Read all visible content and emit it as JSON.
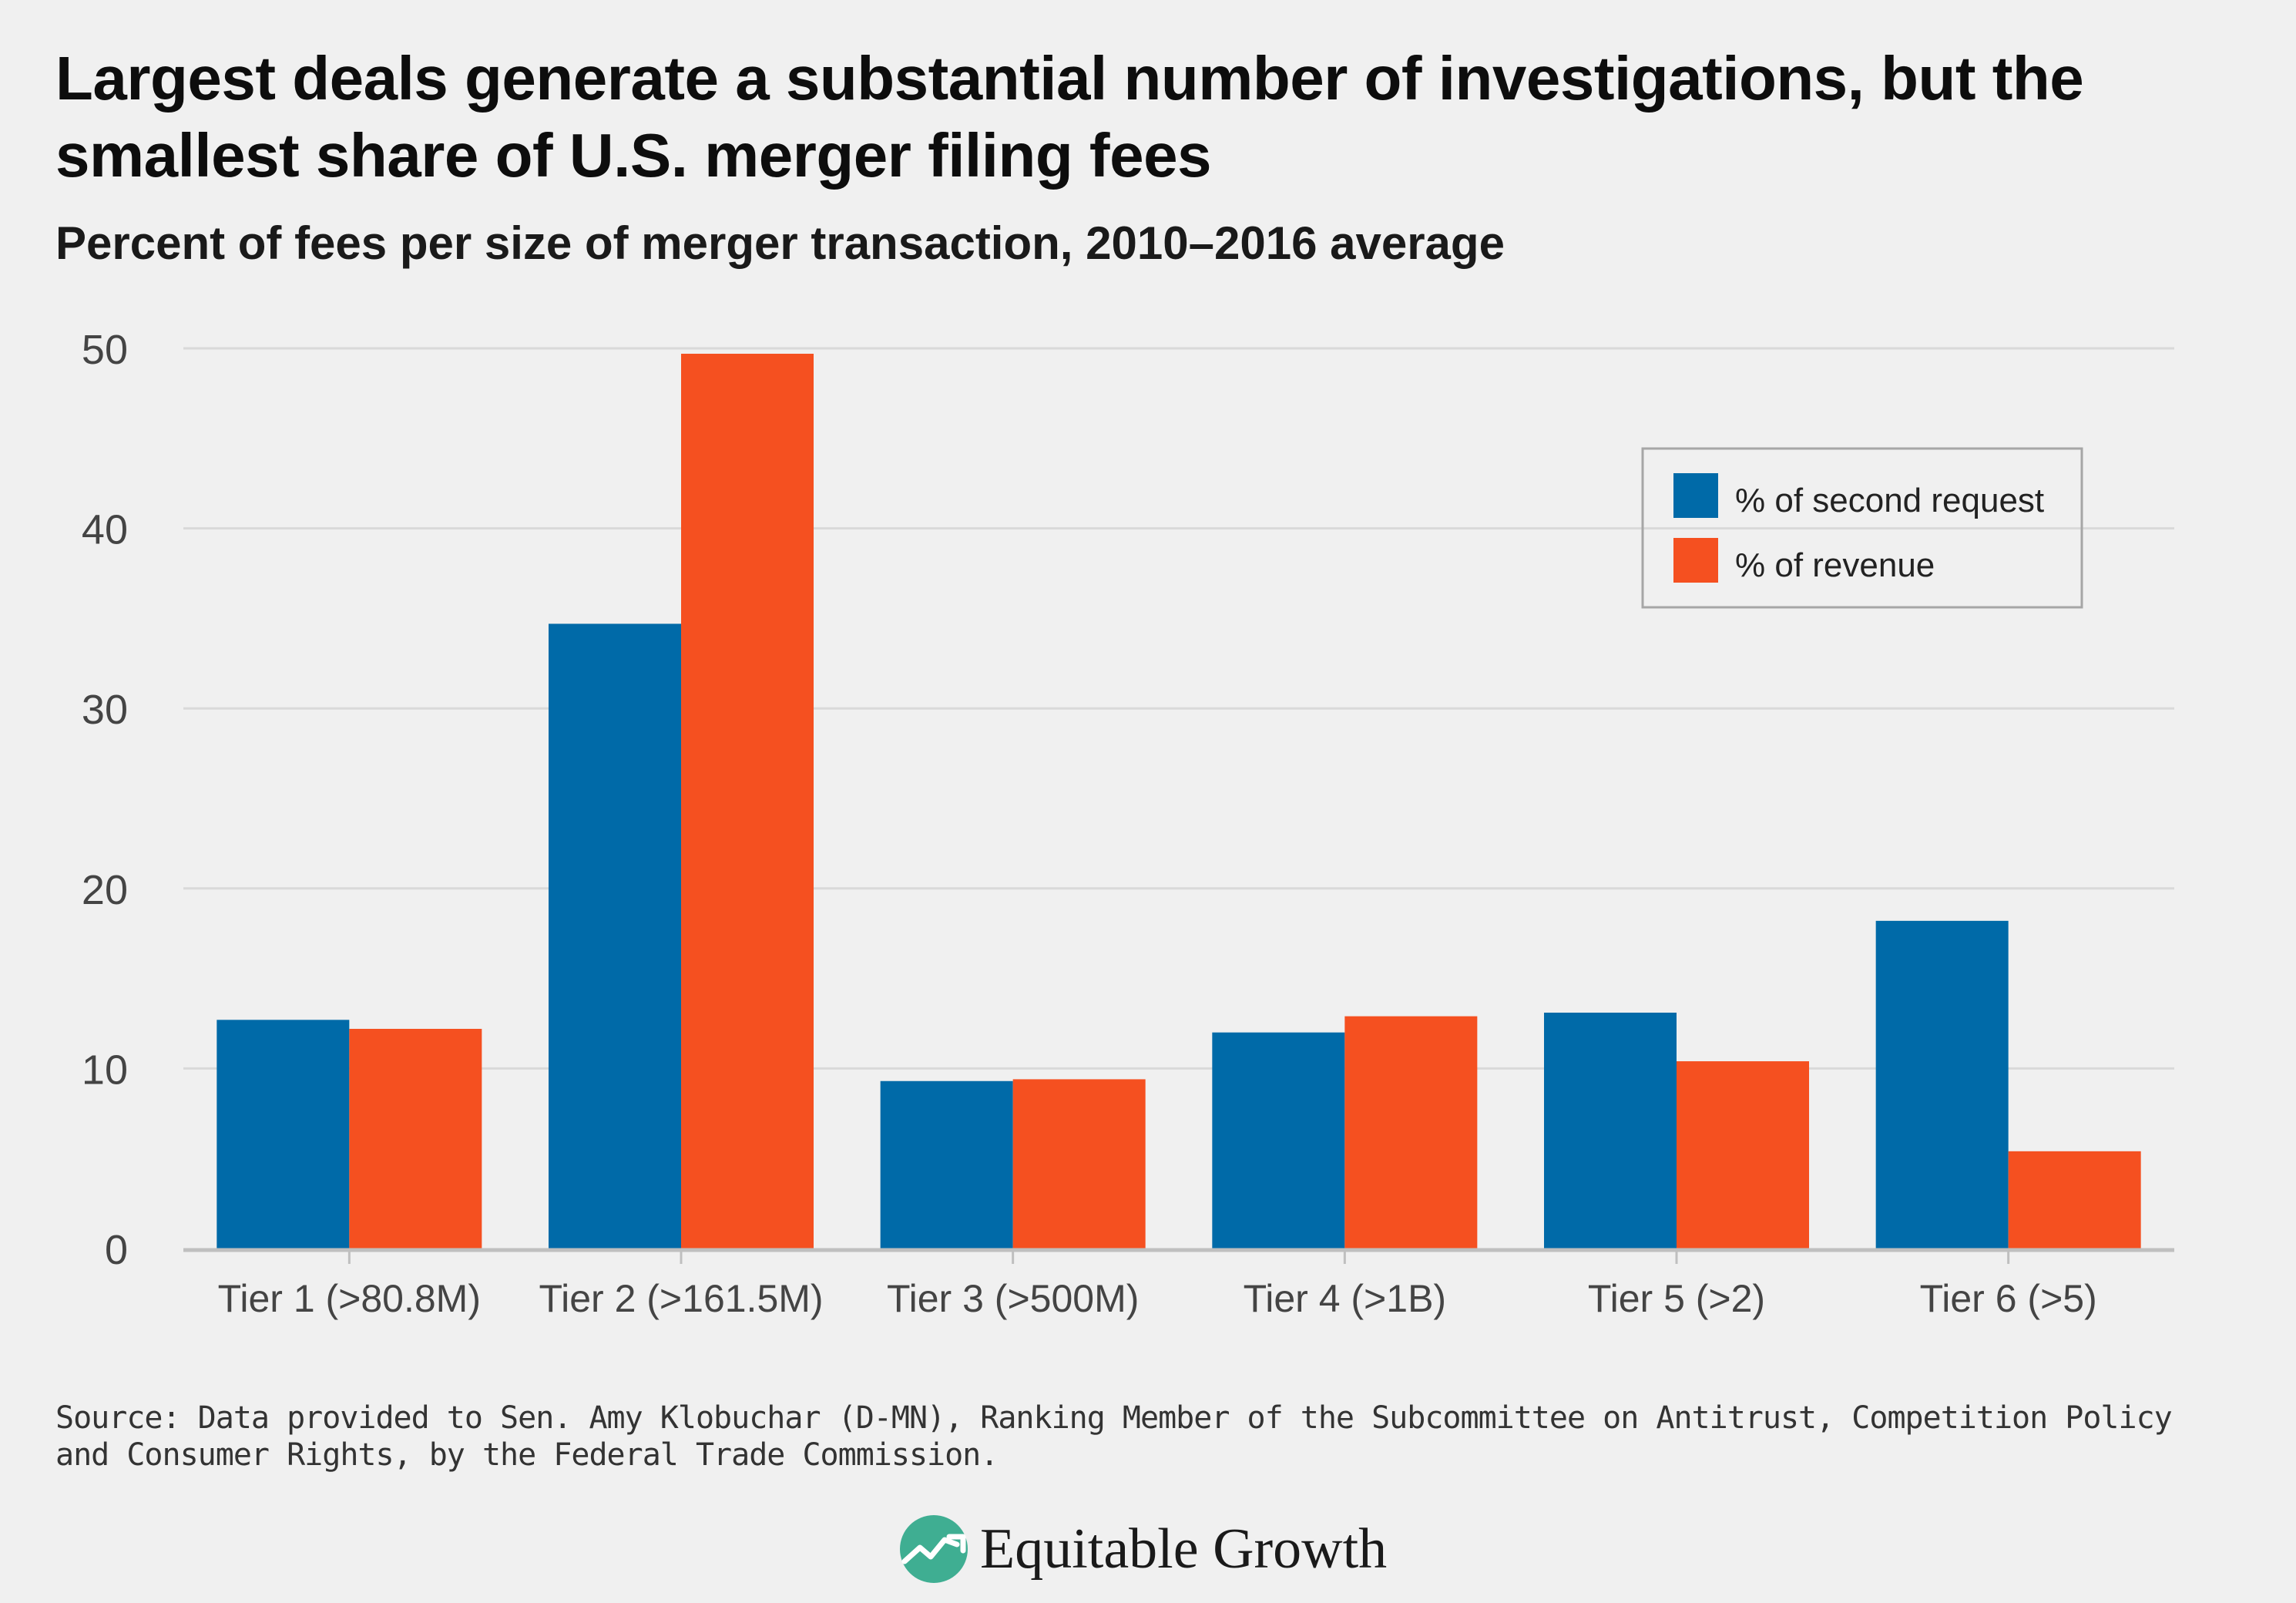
{
  "header": {
    "title": "Largest deals generate a substantial number of investigations, but the smallest share of U.S. merger filing fees",
    "subtitle": "Percent of fees per size of merger transaction, 2010–2016 average"
  },
  "footer": {
    "source": "Source: Data provided to Sen. Amy Klobuchar (D-MN), Ranking Member of the Subcommittee on Antitrust, Competition Policy and Consumer Rights, by the Federal Trade Commission.",
    "brand": "Equitable Growth",
    "brand_icon": "growth-chart-logo-icon"
  },
  "colors": {
    "series_1": "#006aa8",
    "series_2": "#f55020",
    "grid": "#d9d9d9",
    "axis": "#bfbfbf",
    "tick_text": "#444444",
    "legend_border": "#a6a6a6"
  },
  "chart_data": {
    "type": "bar",
    "title": "Largest deals generate a substantial number of investigations, but the smallest share of U.S. merger filing fees",
    "subtitle": "Percent of fees per size of merger transaction, 2010–2016 average",
    "xlabel": "",
    "ylabel": "",
    "categories": [
      "Tier 1 (>80.8M)",
      "Tier 2 (>161.5M)",
      "Tier 3 (>500M)",
      "Tier 4 (>1B)",
      "Tier 5 (>2)",
      "Tier 6 (>5)"
    ],
    "series": [
      {
        "name": "% of second request",
        "values": [
          12.7,
          34.7,
          9.3,
          12.0,
          13.1,
          18.2
        ]
      },
      {
        "name": "% of revenue",
        "values": [
          12.2,
          49.7,
          9.4,
          12.9,
          10.4,
          5.4
        ]
      }
    ],
    "ylim": [
      0,
      50
    ],
    "yticks": [
      0,
      10,
      20,
      30,
      40,
      50
    ],
    "grid": true,
    "legend_position": "top-right"
  }
}
